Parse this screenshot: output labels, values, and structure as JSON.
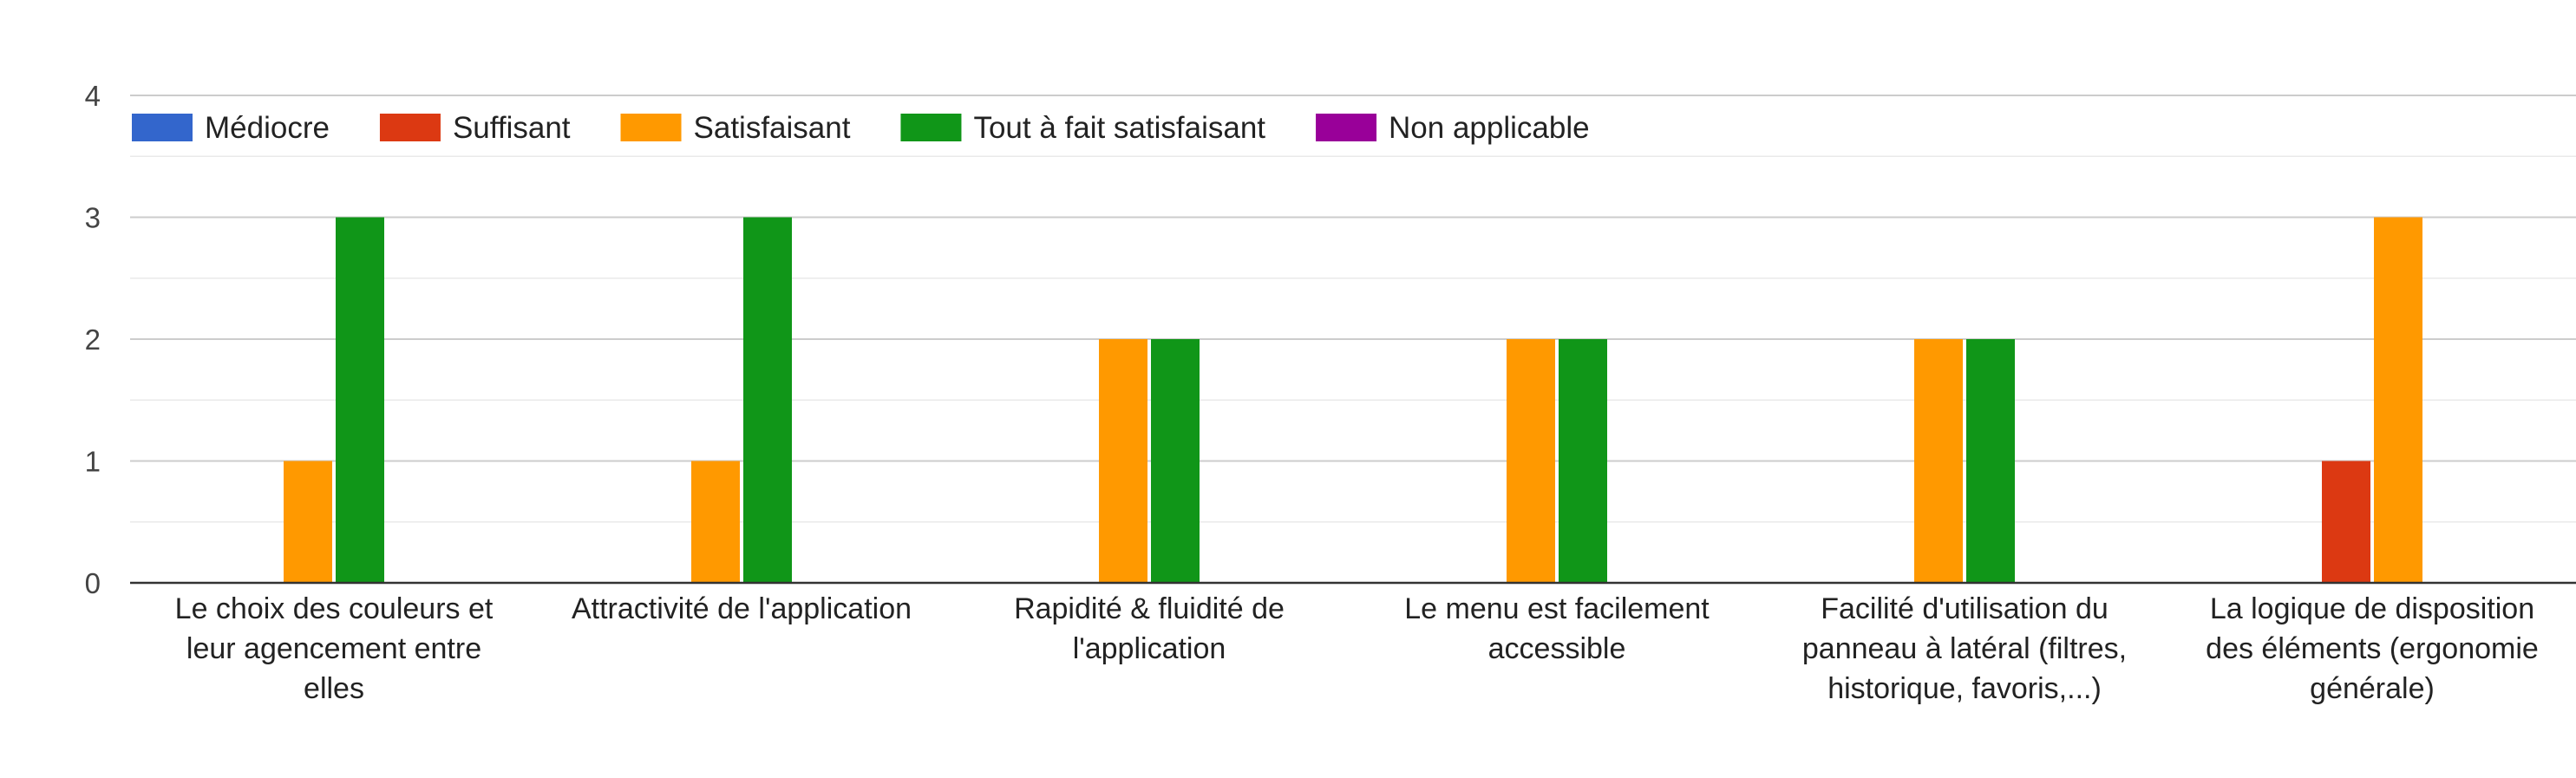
{
  "chart_data": {
    "type": "bar",
    "categories": [
      [
        "Le choix des couleurs et",
        "leur agencement entre",
        "elles"
      ],
      [
        "Attractivité de l'application"
      ],
      [
        "Rapidité & fluidité de",
        "l'application"
      ],
      [
        "Le menu est facilement",
        "accessible"
      ],
      [
        "Facilité d'utilisation du",
        "panneau à latéral (filtres,",
        "historique, favoris,...)"
      ],
      [
        "La logique de disposition",
        "des éléments (ergonomie",
        "générale)"
      ]
    ],
    "series": [
      {
        "name": "Médiocre",
        "color": "#3366cc",
        "values": [
          0,
          0,
          0,
          0,
          0,
          0
        ]
      },
      {
        "name": "Suffisant",
        "color": "#dc3912",
        "values": [
          0,
          0,
          0,
          0,
          0,
          1
        ]
      },
      {
        "name": "Satisfaisant",
        "color": "#ff9900",
        "values": [
          1,
          1,
          2,
          2,
          2,
          3
        ]
      },
      {
        "name": "Tout à fait satisfaisant",
        "color": "#109618",
        "values": [
          3,
          3,
          2,
          2,
          2,
          0
        ]
      },
      {
        "name": "Non applicable",
        "color": "#990099",
        "values": [
          0,
          0,
          0,
          0,
          0,
          0
        ]
      }
    ],
    "ylim": [
      0,
      4
    ],
    "yticks": [
      0,
      1,
      2,
      3,
      4
    ],
    "minor_gridlines": true,
    "grid": true,
    "legend_position": "top-left",
    "title": "",
    "xlabel": "",
    "ylabel": ""
  }
}
